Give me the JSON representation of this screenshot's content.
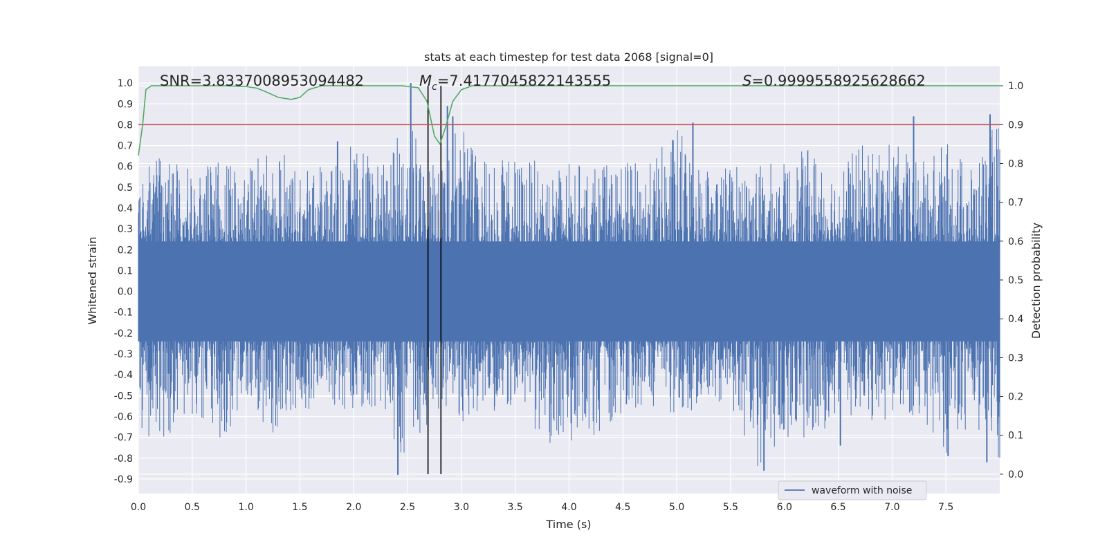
{
  "chart_data": {
    "type": "line",
    "title": "stats at each timestep for test data 2068 [signal=0]",
    "xlabel": "Time (s)",
    "ylabel": "Whitened strain",
    "ylabel_right": "Detection probability",
    "xlim": [
      0.0,
      8.0
    ],
    "ylim": [
      -0.97,
      1.08
    ],
    "ylim_right": [
      -0.05,
      1.05
    ],
    "x_ticks": [
      "0.0",
      "0.5",
      "1.0",
      "1.5",
      "2.0",
      "2.5",
      "3.0",
      "3.5",
      "4.0",
      "4.5",
      "5.0",
      "5.5",
      "6.0",
      "6.5",
      "7.0",
      "7.5"
    ],
    "y_ticks": [
      "1.0",
      "0.9",
      "0.8",
      "0.7",
      "0.6",
      "0.5",
      "0.4",
      "0.3",
      "0.2",
      "0.1",
      "0.0",
      "-0.1",
      "-0.2",
      "-0.3",
      "-0.4",
      "-0.5",
      "-0.6",
      "-0.7",
      "-0.8",
      "-0.9"
    ],
    "y_ticks_right": [
      "1.0",
      "0.9",
      "0.8",
      "0.7",
      "0.6",
      "0.5",
      "0.4",
      "0.3",
      "0.2",
      "0.1",
      "0.0"
    ],
    "grid": true,
    "legend": {
      "position": "lower-right",
      "entries": [
        {
          "label": "waveform with noise",
          "color": "#4c72b0"
        }
      ]
    },
    "annotations": {
      "snr": "SNR=3.8337008953094482",
      "mc_prefix": "M",
      "mc_sub": "c",
      "mc_value": "=7.4177045822143555",
      "s_prefix": "S",
      "s_value": "=0.9999558925628662"
    },
    "series": [
      {
        "name": "waveform with noise",
        "axis": "left",
        "color": "#4c72b0",
        "envelope_x": [
          0.0,
          0.25,
          0.5,
          0.75,
          1.0,
          1.25,
          1.5,
          1.75,
          2.0,
          2.25,
          2.5,
          2.75,
          3.0,
          3.25,
          3.5,
          3.75,
          4.0,
          4.25,
          4.5,
          4.75,
          5.0,
          5.25,
          5.5,
          5.75,
          6.0,
          6.25,
          6.5,
          6.75,
          7.0,
          7.25,
          7.5,
          7.75,
          8.0
        ],
        "envelope_upper": [
          0.6,
          0.65,
          0.6,
          0.62,
          0.6,
          0.72,
          0.6,
          0.62,
          0.72,
          0.62,
          0.85,
          0.62,
          0.85,
          0.62,
          0.65,
          0.62,
          0.62,
          0.6,
          0.62,
          0.62,
          0.8,
          0.62,
          0.62,
          0.62,
          0.62,
          0.7,
          0.62,
          0.72,
          0.72,
          0.62,
          0.72,
          0.62,
          0.85
        ],
        "envelope_lower": [
          -0.7,
          -0.7,
          -0.6,
          -0.73,
          -0.55,
          -0.7,
          -0.58,
          -0.55,
          -0.58,
          -0.55,
          -0.88,
          -0.55,
          -0.65,
          -0.58,
          -0.55,
          -0.73,
          -0.73,
          -0.7,
          -0.58,
          -0.55,
          -0.6,
          -0.55,
          -0.55,
          -0.85,
          -0.7,
          -0.75,
          -0.58,
          -0.62,
          -0.62,
          -0.62,
          -0.78,
          -0.62,
          -0.82
        ],
        "spikes": [
          {
            "x": 2.53,
            "y": 1.0
          },
          {
            "x": 2.41,
            "y": -0.88
          },
          {
            "x": 2.87,
            "y": 0.89
          },
          {
            "x": 2.92,
            "y": 0.84
          },
          {
            "x": 5.15,
            "y": 0.81
          },
          {
            "x": 5.81,
            "y": -0.86
          },
          {
            "x": 7.2,
            "y": 0.84
          },
          {
            "x": 7.91,
            "y": 0.85
          },
          {
            "x": 7.88,
            "y": -0.82
          },
          {
            "x": 7.52,
            "y": -0.79
          },
          {
            "x": 6.52,
            "y": -0.74
          },
          {
            "x": 1.85,
            "y": 0.72
          }
        ]
      },
      {
        "name": "detection probability",
        "axis": "right",
        "color": "#55a868",
        "x": [
          0.0,
          0.04,
          0.07,
          0.12,
          0.2,
          0.4,
          0.8,
          1.0,
          1.1,
          1.18,
          1.3,
          1.42,
          1.5,
          1.58,
          1.7,
          1.9,
          2.2,
          2.45,
          2.6,
          2.68,
          2.75,
          2.8,
          2.85,
          2.92,
          3.0,
          3.1,
          3.3,
          4.0,
          6.0,
          8.0
        ],
        "y": [
          0.82,
          0.9,
          0.99,
          1.0,
          1.0,
          1.0,
          1.0,
          0.998,
          0.994,
          0.985,
          0.97,
          0.965,
          0.97,
          0.99,
          1.0,
          1.0,
          1.0,
          1.0,
          0.995,
          0.96,
          0.87,
          0.85,
          0.89,
          0.96,
          0.99,
          1.0,
          1.0,
          1.0,
          1.0,
          1.0
        ]
      },
      {
        "name": "threshold",
        "axis": "right",
        "color": "#c44e52",
        "x": [
          0.0,
          8.0
        ],
        "y": [
          0.9,
          0.9
        ]
      }
    ],
    "vertical_lines": [
      {
        "x": 2.69,
        "color": "#000000"
      },
      {
        "x": 2.81,
        "color": "#000000"
      }
    ]
  }
}
